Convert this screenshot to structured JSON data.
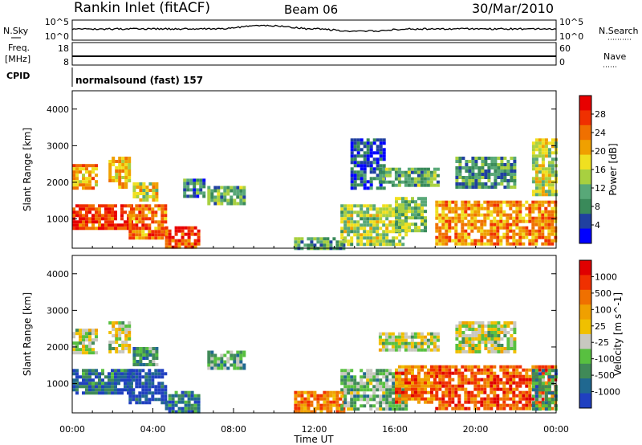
{
  "header": {
    "station": "Rankin Inlet (fitACF)",
    "beam": "Beam 06",
    "date": "30/Mar/2010"
  },
  "status_panels": {
    "nsky_label": "N.Sky",
    "nsearch_label": "N.Search",
    "noise_ticks": [
      "10^5",
      "10^0"
    ],
    "freq_label": "Freq.",
    "freq_unit": "[MHz]",
    "freq_ticks": [
      "18",
      "8"
    ],
    "nave_label": "Nave",
    "nave_ticks": [
      "60",
      "0"
    ],
    "cpid_label": "CPID",
    "cpid_value": "normalsound (fast) 157"
  },
  "colors": {
    "power_scale": [
      "#0000ff",
      "#2040a0",
      "#3a8a5a",
      "#58a878",
      "#a8d040",
      "#f0e020",
      "#f0a000",
      "#f07000",
      "#f03000",
      "#e80000"
    ],
    "velocity_scale": [
      "#2040c0",
      "#206890",
      "#408a58",
      "#58c040",
      "#c8c8c0",
      "#f0c000",
      "#f0a000",
      "#f07000",
      "#f03000",
      "#e00000"
    ]
  },
  "chart_data": [
    {
      "type": "heatmap",
      "panel": "power",
      "ylabel": "Slant Range [km]",
      "xlim": [
        0,
        24
      ],
      "ylim": [
        200,
        4500
      ],
      "yticks": [
        1000,
        2000,
        3000,
        4000
      ],
      "colorbar_label": "Power [dB]",
      "colorbar_ticks": [
        4,
        8,
        12,
        16,
        20,
        24,
        28
      ],
      "regions": [
        {
          "t": [
            0.0,
            3.0
          ],
          "r": [
            700,
            1400
          ],
          "level": 0.85
        },
        {
          "t": [
            0.0,
            1.2
          ],
          "r": [
            1800,
            2500
          ],
          "level": 0.65
        },
        {
          "t": [
            1.8,
            2.8
          ],
          "r": [
            1900,
            2700
          ],
          "level": 0.6
        },
        {
          "t": [
            2.8,
            4.6
          ],
          "r": [
            500,
            1400
          ],
          "level": 0.75
        },
        {
          "t": [
            3.0,
            4.2
          ],
          "r": [
            1500,
            2000
          ],
          "level": 0.55
        },
        {
          "t": [
            4.6,
            6.2
          ],
          "r": [
            200,
            800
          ],
          "level": 0.85
        },
        {
          "t": [
            5.5,
            6.5
          ],
          "r": [
            1600,
            2100
          ],
          "level": 0.25
        },
        {
          "t": [
            6.7,
            8.6
          ],
          "r": [
            1400,
            1900
          ],
          "level": 0.35
        },
        {
          "t": [
            11.0,
            13.5
          ],
          "r": [
            200,
            500
          ],
          "level": 0.3
        },
        {
          "t": [
            13.3,
            16.6
          ],
          "r": [
            300,
            1400
          ],
          "level": 0.45
        },
        {
          "t": [
            13.8,
            15.5
          ],
          "r": [
            1800,
            3200
          ],
          "level": 0.15
        },
        {
          "t": [
            15.2,
            18.2
          ],
          "r": [
            1900,
            2400
          ],
          "level": 0.35
        },
        {
          "t": [
            16.0,
            17.5
          ],
          "r": [
            700,
            1600
          ],
          "level": 0.4
        },
        {
          "t": [
            18.0,
            24.0
          ],
          "r": [
            300,
            1500
          ],
          "level": 0.7
        },
        {
          "t": [
            19.0,
            22.0
          ],
          "r": [
            1900,
            2700
          ],
          "level": 0.3
        },
        {
          "t": [
            22.8,
            24.0
          ],
          "r": [
            1700,
            3200
          ],
          "level": 0.5
        }
      ]
    },
    {
      "type": "heatmap",
      "panel": "velocity",
      "xlabel": "Time UT",
      "ylabel": "Slant Range [km]",
      "xlim": [
        0,
        24
      ],
      "ylim": [
        200,
        4500
      ],
      "xticks": [
        "00:00",
        "04:00",
        "08:00",
        "12:00",
        "16:00",
        "20:00",
        "00:00"
      ],
      "yticks": [
        1000,
        2000,
        3000,
        4000
      ],
      "colorbar_label": "Velocity [m s^-1]",
      "colorbar_ticks": [
        1000,
        500,
        100,
        25,
        -25,
        -100,
        -500,
        -1000
      ],
      "regions": [
        {
          "t": [
            0.0,
            3.0
          ],
          "r": [
            700,
            1400
          ],
          "level": 0.15
        },
        {
          "t": [
            0.0,
            1.2
          ],
          "r": [
            1800,
            2500
          ],
          "level": 0.45
        },
        {
          "t": [
            1.8,
            2.8
          ],
          "r": [
            1900,
            2700
          ],
          "level": 0.45
        },
        {
          "t": [
            2.8,
            4.6
          ],
          "r": [
            500,
            1400
          ],
          "level": 0.05
        },
        {
          "t": [
            3.0,
            4.2
          ],
          "r": [
            1500,
            2000
          ],
          "level": 0.25
        },
        {
          "t": [
            4.6,
            6.2
          ],
          "r": [
            200,
            800
          ],
          "level": 0.2
        },
        {
          "t": [
            6.7,
            8.6
          ],
          "r": [
            1400,
            1900
          ],
          "level": 0.3
        },
        {
          "t": [
            11.0,
            13.5
          ],
          "r": [
            200,
            800
          ],
          "level": 0.7
        },
        {
          "t": [
            13.3,
            16.6
          ],
          "r": [
            300,
            1400
          ],
          "level": 0.35
        },
        {
          "t": [
            15.2,
            18.2
          ],
          "r": [
            1900,
            2400
          ],
          "level": 0.45
        },
        {
          "t": [
            16.0,
            18.0
          ],
          "r": [
            500,
            1500
          ],
          "level": 0.75
        },
        {
          "t": [
            18.0,
            24.0
          ],
          "r": [
            300,
            1500
          ],
          "level": 0.8
        },
        {
          "t": [
            19.0,
            22.0
          ],
          "r": [
            1900,
            2700
          ],
          "level": 0.45
        },
        {
          "t": [
            22.8,
            24.0
          ],
          "r": [
            300,
            1400
          ],
          "level": 0.25
        }
      ]
    }
  ]
}
